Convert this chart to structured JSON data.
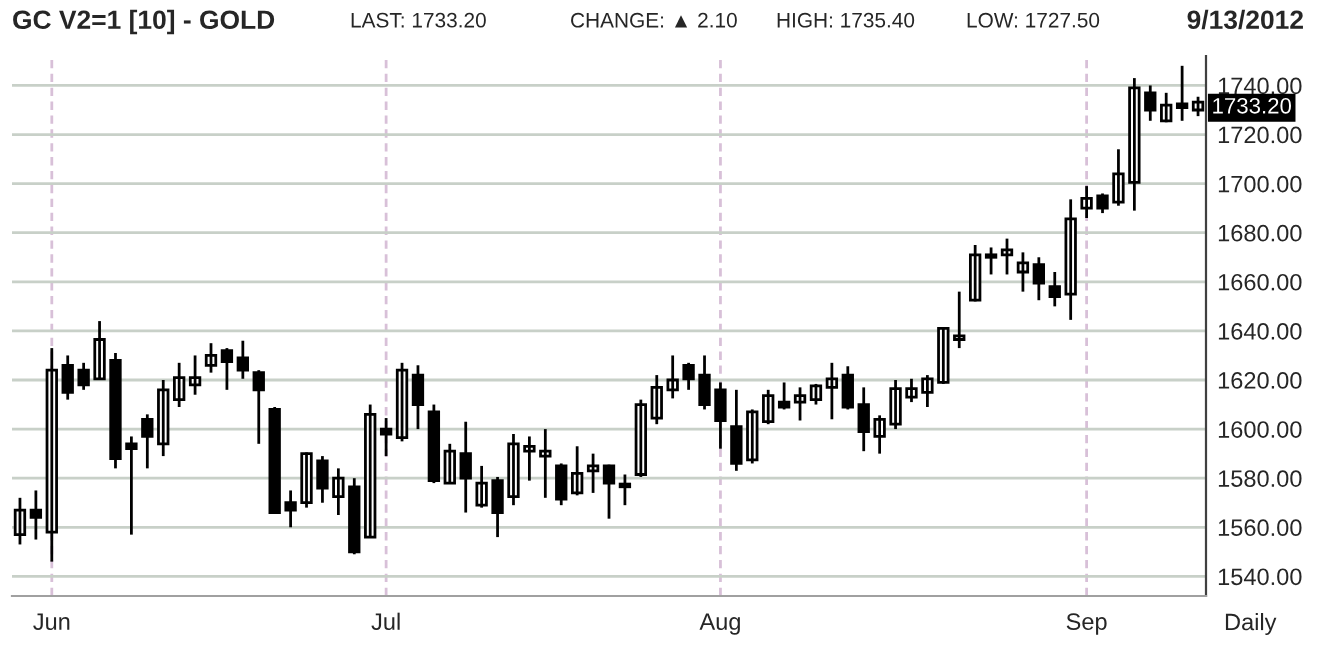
{
  "chart_data": {
    "type": "candlestick",
    "title": "GC V2=1 [10] - GOLD",
    "annotations": [
      "LAST: 1733.20",
      "CHANGE: ▲ 2.10",
      "HIGH: 1735.40",
      "LOW: 1727.50",
      "9/13/2012",
      "Daily",
      "1733.20"
    ],
    "categories": [
      null,
      null,
      "Jun",
      null,
      null,
      null,
      null,
      null,
      null,
      null,
      null,
      null,
      null,
      null,
      null,
      null,
      null,
      null,
      null,
      null,
      null,
      null,
      null,
      "Jul",
      null,
      null,
      null,
      null,
      null,
      null,
      null,
      null,
      null,
      null,
      null,
      null,
      null,
      null,
      null,
      null,
      null,
      null,
      null,
      null,
      "Aug",
      null,
      null,
      null,
      null,
      null,
      null,
      null,
      null,
      null,
      null,
      null,
      null,
      null,
      null,
      null,
      null,
      null,
      null,
      null,
      null,
      null,
      null,
      "Sep",
      null,
      null,
      null,
      null,
      null,
      null,
      null
    ],
    "ohlc": [
      [
        1557,
        1572,
        1553,
        1567
      ],
      [
        1567,
        1575,
        1555,
        1564
      ],
      [
        1558,
        1633,
        1546,
        1624
      ],
      [
        1626,
        1630,
        1612,
        1615
      ],
      [
        1624,
        1627,
        1616,
        1618
      ],
      [
        1620.5,
        1644,
        1620,
        1636.5
      ],
      [
        1628,
        1631,
        1584,
        1588
      ],
      [
        1594,
        1597,
        1557,
        1592
      ],
      [
        1604,
        1606,
        1584,
        1597
      ],
      [
        1594,
        1620,
        1589,
        1616
      ],
      [
        1612,
        1627,
        1609,
        1621
      ],
      [
        1618,
        1630,
        1614,
        1621
      ],
      [
        1626,
        1635,
        1623,
        1630
      ],
      [
        1632,
        1633,
        1616,
        1627.5
      ],
      [
        1629,
        1636,
        1620.5,
        1624
      ],
      [
        1623,
        1624,
        1594,
        1616
      ],
      [
        1608,
        1609,
        1566,
        1566
      ],
      [
        1570,
        1575,
        1560,
        1567
      ],
      [
        1570,
        1590.5,
        1568,
        1590
      ],
      [
        1587,
        1589,
        1570,
        1576
      ],
      [
        1572.5,
        1584,
        1565,
        1580
      ],
      [
        1576.5,
        1580,
        1549,
        1550
      ],
      [
        1556,
        1610,
        1556,
        1606
      ],
      [
        1600,
        1604.5,
        1589,
        1598
      ],
      [
        1596.5,
        1627,
        1595,
        1624
      ],
      [
        1622,
        1626,
        1600,
        1610
      ],
      [
        1607,
        1610,
        1578,
        1579
      ],
      [
        1578,
        1594,
        1578,
        1591
      ],
      [
        1590,
        1603,
        1566,
        1580
      ],
      [
        1569,
        1585,
        1568,
        1578
      ],
      [
        1579,
        1580.5,
        1556,
        1566
      ],
      [
        1572.5,
        1598,
        1569,
        1594
      ],
      [
        1591,
        1597,
        1579,
        1593
      ],
      [
        1589,
        1600,
        1572,
        1591
      ],
      [
        1585,
        1586,
        1569,
        1571.5
      ],
      [
        1574,
        1593,
        1573,
        1582
      ],
      [
        1583,
        1590,
        1574,
        1585
      ],
      [
        1585,
        1585.5,
        1563.5,
        1578
      ],
      [
        1577.6,
        1581.5,
        1569,
        1576.5
      ],
      [
        1581.5,
        1612,
        1580.5,
        1610
      ],
      [
        1604.5,
        1622,
        1602,
        1617
      ],
      [
        1616,
        1630,
        1612.5,
        1620
      ],
      [
        1626,
        1627,
        1616,
        1620.5
      ],
      [
        1622,
        1630,
        1608,
        1610
      ],
      [
        1616,
        1619,
        1592,
        1603.5
      ],
      [
        1601,
        1616,
        1583,
        1586
      ],
      [
        1587.5,
        1608,
        1586,
        1607
      ],
      [
        1603,
        1616,
        1602,
        1613.6
      ],
      [
        1611,
        1619,
        1608,
        1609
      ],
      [
        1611,
        1617,
        1603.5,
        1613.6
      ],
      [
        1612,
        1618.4,
        1610,
        1617.6
      ],
      [
        1617,
        1627,
        1604,
        1620.5
      ],
      [
        1622,
        1625.6,
        1608,
        1609
      ],
      [
        1610,
        1617,
        1591,
        1599
      ],
      [
        1597,
        1605.6,
        1590,
        1604
      ],
      [
        1602,
        1620,
        1600,
        1616.5
      ],
      [
        1613,
        1620.5,
        1611,
        1616.5
      ],
      [
        1615,
        1622,
        1609,
        1620.5
      ],
      [
        1619,
        1641.6,
        1618.4,
        1641
      ],
      [
        1636.5,
        1656,
        1633,
        1638
      ],
      [
        1652.5,
        1675,
        1652,
        1671
      ],
      [
        1671,
        1674,
        1663,
        1670
      ],
      [
        1671,
        1677.6,
        1663,
        1673
      ],
      [
        1664,
        1672,
        1656,
        1667.7
      ],
      [
        1667,
        1670,
        1652.5,
        1659.5
      ],
      [
        1658,
        1664,
        1650,
        1654
      ],
      [
        1655,
        1693.6,
        1644.5,
        1685.6
      ],
      [
        1690,
        1699,
        1686,
        1694
      ],
      [
        1695,
        1696,
        1688,
        1690
      ],
      [
        1692.5,
        1714,
        1691,
        1704
      ],
      [
        1700.5,
        1743,
        1689,
        1739
      ],
      [
        1737,
        1740,
        1725.6,
        1730
      ],
      [
        1725.6,
        1737,
        1725,
        1732
      ],
      [
        1732.5,
        1748,
        1725.6,
        1731
      ],
      [
        1730,
        1735.4,
        1727.5,
        1733.2
      ]
    ],
    "ylim": [
      1532,
      1752
    ],
    "yticks": [
      {
        "value": 1540,
        "label": "1540.00"
      },
      {
        "value": 1560,
        "label": "1560.00"
      },
      {
        "value": 1580,
        "label": "1580.00"
      },
      {
        "value": 1600,
        "label": "1600.00"
      },
      {
        "value": 1620,
        "label": "1620.00"
      },
      {
        "value": 1640,
        "label": "1640.00"
      },
      {
        "value": 1660,
        "label": "1660.00"
      },
      {
        "value": 1680,
        "label": "1680.00"
      },
      {
        "value": 1700,
        "label": "1700.00"
      },
      {
        "value": 1720,
        "label": "1720.00"
      },
      {
        "value": 1740,
        "label": "1740.00"
      }
    ],
    "grid": true
  }
}
